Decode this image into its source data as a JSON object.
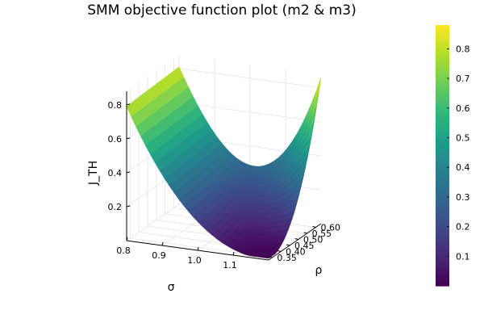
{
  "chart_data": {
    "type": "surface",
    "title": "SMM objective function plot (m2 & m3)",
    "xlabel": "σ",
    "ylabel": "ρ",
    "zlabel": "J_TH",
    "x_ticks": [
      "0.8",
      "0.9",
      "1.0",
      "1.1"
    ],
    "y_ticks": [
      "0.35",
      "0.40",
      "0.45",
      "0.50",
      "0.55",
      "0.60"
    ],
    "z_ticks": [
      "0.2",
      "0.4",
      "0.6",
      "0.8"
    ],
    "xlim": [
      0.8,
      1.2
    ],
    "ylim": [
      0.33,
      0.63
    ],
    "zlim": [
      0.0,
      0.88
    ],
    "colormap": "viridis",
    "colorbar": {
      "min": 0.0,
      "max": 0.88,
      "ticks": [
        "0.1",
        "0.2",
        "0.3",
        "0.4",
        "0.5",
        "0.6",
        "0.7",
        "0.8"
      ]
    },
    "surface_samples": [
      {
        "sigma": 0.8,
        "rho": 0.63,
        "J_TH": 0.87
      },
      {
        "sigma": 0.8,
        "rho": 0.33,
        "J_TH": 0.78
      },
      {
        "sigma": 0.9,
        "rho": 0.48,
        "J_TH": 0.42
      },
      {
        "sigma": 1.0,
        "rho": 0.48,
        "J_TH": 0.12
      },
      {
        "sigma": 1.1,
        "rho": 0.48,
        "J_TH": 0.02
      },
      {
        "sigma": 1.2,
        "rho": 0.33,
        "J_TH": 0.03
      },
      {
        "sigma": 1.2,
        "rho": 0.63,
        "J_TH": 0.86
      }
    ],
    "grid": true,
    "legend": "colorbar-right"
  }
}
